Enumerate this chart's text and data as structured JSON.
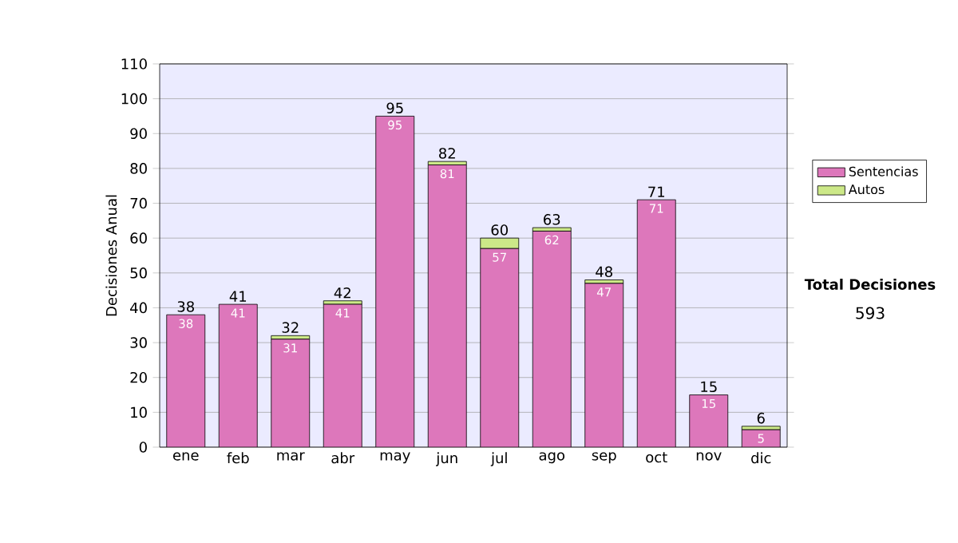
{
  "chart_data": {
    "type": "bar",
    "stacked": true,
    "ylabel": "Decisiones Anual",
    "categories": [
      "ene",
      "feb",
      "mar",
      "abr",
      "may",
      "jun",
      "jul",
      "ago",
      "sep",
      "oct",
      "nov",
      "dic"
    ],
    "series": [
      {
        "name": "Sentencias",
        "color": "#dd77bb",
        "values": [
          38,
          41,
          31,
          41,
          95,
          81,
          57,
          62,
          47,
          71,
          15,
          5
        ],
        "value_labels": [
          "38",
          "41",
          "31",
          "41",
          "95",
          "81",
          "57",
          "62",
          "47",
          "71",
          "15",
          "5"
        ]
      },
      {
        "name": "Autos",
        "color": "#cce888",
        "values": [
          0,
          0,
          1,
          1,
          0,
          1,
          3,
          1,
          1,
          0,
          0,
          1
        ]
      }
    ],
    "totals": [
      "38",
      "41",
      "32",
      "42",
      "95",
      "82",
      "60",
      "63",
      "48",
      "71",
      "15",
      "6"
    ],
    "ylim": [
      0,
      110
    ],
    "yticks": [
      0,
      10,
      20,
      30,
      40,
      50,
      60,
      70,
      80,
      90,
      100,
      110
    ],
    "grid": "y",
    "legend": "right",
    "annotations": [
      "Total Decisiones",
      "593"
    ]
  }
}
